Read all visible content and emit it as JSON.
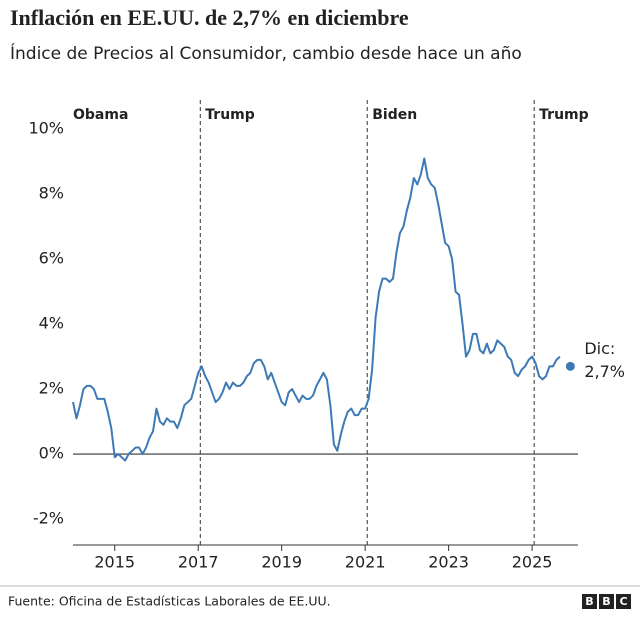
{
  "chart_data": {
    "type": "line",
    "title": "Inflación en EE.UU. de 2,7% en diciembre",
    "subtitle": "Índice de Precios al Consumidor, cambio desde hace un año",
    "source": "Fuente: Oficina de Estadísticas Laborales de EE.UU.",
    "logo": [
      "B",
      "B",
      "C"
    ],
    "xlim": [
      2014,
      2026.1
    ],
    "xticks": [
      2015,
      2017,
      2019,
      2021,
      2023,
      2025
    ],
    "ylim": [
      -2.8,
      10.9
    ],
    "yticks": [
      {
        "value": 10,
        "label": "10%"
      },
      {
        "value": 8,
        "label": "8%"
      },
      {
        "value": 6,
        "label": "6%"
      },
      {
        "value": 4,
        "label": "4%"
      },
      {
        "value": 2,
        "label": "2%"
      },
      {
        "value": 0,
        "label": "0%"
      },
      {
        "value": -2,
        "label": "-2%"
      }
    ],
    "periods": [
      {
        "name": "Obama",
        "start": 2014
      },
      {
        "name": "Trump",
        "start": 2017.05
      },
      {
        "name": "Biden",
        "start": 2021.05
      },
      {
        "name": "Trump",
        "start": 2025.05
      }
    ],
    "series": [
      {
        "color": "#3d7ab5",
        "x": [
          2014,
          2014.083,
          2014.167,
          2014.25,
          2014.333,
          2014.417,
          2014.5,
          2014.583,
          2014.667,
          2014.75,
          2014.833,
          2014.917,
          2015,
          2015.083,
          2015.167,
          2015.25,
          2015.333,
          2015.417,
          2015.5,
          2015.583,
          2015.667,
          2015.75,
          2015.833,
          2015.917,
          2016,
          2016.083,
          2016.167,
          2016.25,
          2016.333,
          2016.417,
          2016.5,
          2016.583,
          2016.667,
          2016.75,
          2016.833,
          2016.917,
          2017,
          2017.083,
          2017.167,
          2017.25,
          2017.333,
          2017.417,
          2017.5,
          2017.583,
          2017.667,
          2017.75,
          2017.833,
          2017.917,
          2018,
          2018.083,
          2018.167,
          2018.25,
          2018.333,
          2018.417,
          2018.5,
          2018.583,
          2018.667,
          2018.75,
          2018.833,
          2018.917,
          2019,
          2019.083,
          2019.167,
          2019.25,
          2019.333,
          2019.417,
          2019.5,
          2019.583,
          2019.667,
          2019.75,
          2019.833,
          2019.917,
          2020,
          2020.083,
          2020.167,
          2020.25,
          2020.333,
          2020.417,
          2020.5,
          2020.583,
          2020.667,
          2020.75,
          2020.833,
          2020.917,
          2021,
          2021.083,
          2021.167,
          2021.25,
          2021.333,
          2021.417,
          2021.5,
          2021.583,
          2021.667,
          2021.75,
          2021.833,
          2021.917,
          2022,
          2022.083,
          2022.167,
          2022.25,
          2022.333,
          2022.417,
          2022.5,
          2022.583,
          2022.667,
          2022.75,
          2022.833,
          2022.917,
          2023,
          2023.083,
          2023.167,
          2023.25,
          2023.333,
          2023.417,
          2023.5,
          2023.583,
          2023.667,
          2023.75,
          2023.833,
          2023.917,
          2024,
          2024.083,
          2024.167,
          2024.25,
          2024.333,
          2024.417,
          2024.5,
          2024.583,
          2024.667,
          2024.75,
          2024.833,
          2024.917,
          2025,
          2025.083,
          2025.167,
          2025.25,
          2025.333,
          2025.417,
          2025.5,
          2025.583,
          2025.667
        ],
        "values": [
          1.6,
          1.1,
          1.5,
          2.0,
          2.1,
          2.1,
          2.0,
          1.7,
          1.7,
          1.7,
          1.3,
          0.8,
          -0.1,
          0.0,
          -0.1,
          -0.2,
          0.0,
          0.1,
          0.2,
          0.2,
          0.0,
          0.2,
          0.5,
          0.7,
          1.4,
          1.0,
          0.9,
          1.1,
          1.0,
          1.0,
          0.8,
          1.1,
          1.5,
          1.6,
          1.7,
          2.1,
          2.5,
          2.7,
          2.4,
          2.2,
          1.9,
          1.6,
          1.7,
          1.9,
          2.2,
          2.0,
          2.2,
          2.1,
          2.1,
          2.2,
          2.4,
          2.5,
          2.8,
          2.9,
          2.9,
          2.7,
          2.3,
          2.5,
          2.2,
          1.9,
          1.6,
          1.5,
          1.9,
          2.0,
          1.8,
          1.6,
          1.8,
          1.7,
          1.7,
          1.8,
          2.1,
          2.3,
          2.5,
          2.3,
          1.5,
          0.3,
          0.1,
          0.6,
          1.0,
          1.3,
          1.4,
          1.2,
          1.2,
          1.4,
          1.4,
          1.7,
          2.6,
          4.2,
          5.0,
          5.4,
          5.4,
          5.3,
          5.4,
          6.2,
          6.8,
          7.0,
          7.5,
          7.9,
          8.5,
          8.3,
          8.6,
          9.1,
          8.5,
          8.3,
          8.2,
          7.7,
          7.1,
          6.5,
          6.4,
          6.0,
          5.0,
          4.9,
          4.0,
          3.0,
          3.2,
          3.7,
          3.7,
          3.2,
          3.1,
          3.4,
          3.1,
          3.2,
          3.5,
          3.4,
          3.3,
          3.0,
          2.9,
          2.5,
          2.4,
          2.6,
          2.7,
          2.9,
          3.0,
          2.8,
          2.4,
          2.3,
          2.4,
          2.7,
          2.7,
          2.9,
          3.0
        ]
      }
    ],
    "highlight": {
      "x": 2025.917,
      "value": 2.7,
      "label": "Dic:",
      "value_label": "2,7%",
      "color": "#3d7ab5"
    }
  }
}
